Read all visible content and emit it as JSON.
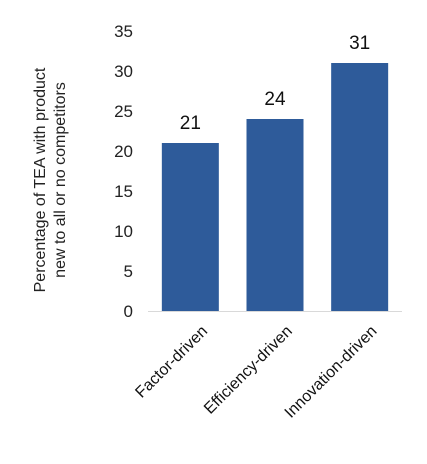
{
  "chart_data": {
    "type": "bar",
    "categories": [
      "Factor-driven",
      "Efficiency-driven",
      "Innovation-driven"
    ],
    "values": [
      21,
      24,
      31
    ],
    "data_labels": [
      "21",
      "24",
      "31"
    ],
    "ylabel_lines": [
      "Percentage of TEA with product",
      "new to all or no competitors"
    ],
    "ylim": [
      0,
      35
    ],
    "yticks": [
      0,
      5,
      10,
      15,
      20,
      25,
      30,
      35
    ],
    "grid": false,
    "legend": "none",
    "bar_color": "#2E5B9A"
  }
}
